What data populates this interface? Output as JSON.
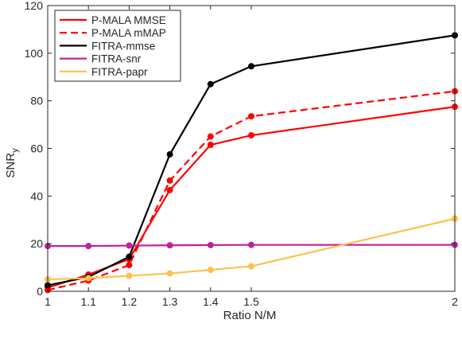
{
  "chart_data": {
    "type": "line",
    "x": [
      1,
      1.1,
      1.2,
      1.3,
      1.4,
      1.5,
      2
    ],
    "xticks": [
      "1",
      "1.1",
      "1.2",
      "1.3",
      "1.4",
      "1.5",
      "2"
    ],
    "xlabel": "Ratio N/M",
    "ylabel_main": "SNR",
    "ylabel_sub": "y",
    "ylim": [
      0,
      120
    ],
    "yticks": [
      0,
      20,
      40,
      60,
      80,
      100,
      120
    ],
    "grid": false,
    "legend_position": "top-left",
    "series": [
      {
        "name": "P-MALA MMSE",
        "color": "#ff0000",
        "dash": "solid",
        "values": [
          1.5,
          7,
          13.5,
          42.5,
          61.5,
          65.5,
          77.5
        ]
      },
      {
        "name": "P-MALA mMAP",
        "color": "#ff0000",
        "dash": "dashed",
        "values": [
          0.5,
          4.5,
          11,
          46.5,
          65,
          73.5,
          84
        ]
      },
      {
        "name": "FITRA-mmse",
        "color": "#000000",
        "dash": "solid",
        "values": [
          2.5,
          6,
          14.5,
          57.5,
          87,
          94.5,
          107.5
        ]
      },
      {
        "name": "FITRA-snr",
        "color": "#c0209c",
        "dash": "solid",
        "values": [
          19,
          19,
          19.2,
          19.3,
          19.4,
          19.5,
          19.5
        ]
      },
      {
        "name": "FITRA-papr",
        "color": "#ffc04c",
        "dash": "solid",
        "values": [
          5,
          5.5,
          6.5,
          7.5,
          9,
          10.5,
          30.5
        ]
      }
    ]
  }
}
